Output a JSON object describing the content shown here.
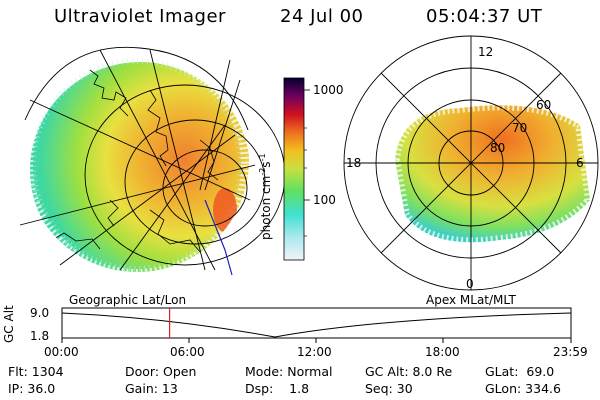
{
  "header": {
    "instrument": "Ultraviolet Imager",
    "date": "24 Jul 00",
    "time": "05:04:37 UT"
  },
  "colorbar": {
    "ticks": [
      "1000",
      "100"
    ],
    "unit_prefix": "photon cm",
    "unit_exp1": "-2",
    "unit_mid": "s",
    "unit_exp2": "-1"
  },
  "polar_plot": {
    "mlt_labels": [
      "12",
      "18",
      "6",
      "0"
    ],
    "lat_labels": [
      "60",
      "70",
      "80"
    ]
  },
  "panels": {
    "left_title": "Geographic Lat/Lon",
    "right_title": "Apex MLat/MLT"
  },
  "altitude_plot": {
    "ylabel": "GC Alt",
    "yticks": [
      "9.0",
      "1.8"
    ],
    "xticks": [
      "00:00",
      "06:00",
      "12:00",
      "18:00",
      "23:59"
    ],
    "current_time_fraction": 0.2114
  },
  "status": {
    "flt": "Flt: 1304",
    "door": "Door: Open",
    "mode": "Mode: Normal",
    "gc_alt": "GC Alt: 8.0 Re",
    "glat": "GLat:  69.0",
    "ip": "IP: 36.0",
    "gain": "Gain: 13",
    "dsp": "Dsp:    1.8",
    "seq": "Seq: 30",
    "glon": "GLon: 334.6"
  },
  "colors": {
    "cbar_stops": [
      "#e0e8f0",
      "#40e0d0",
      "#80e040",
      "#e0e040",
      "#f0a020",
      "#e02020",
      "#800060",
      "#000040"
    ],
    "marker": "#e02020"
  }
}
